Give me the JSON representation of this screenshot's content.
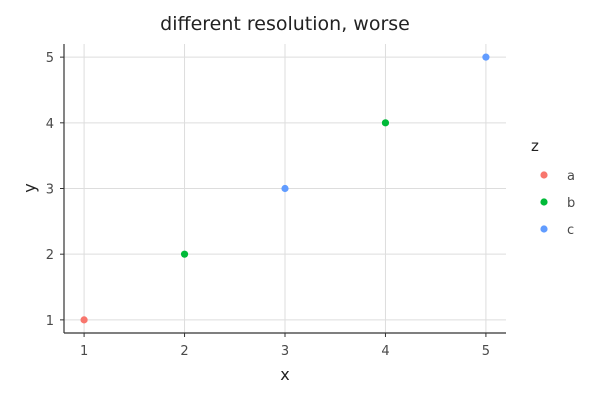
{
  "chart_data": {
    "type": "scatter",
    "title": "different resolution, worse",
    "xlabel": "x",
    "ylabel": "y",
    "xlim": [
      0.8,
      5.2
    ],
    "ylim": [
      0.8,
      5.2
    ],
    "xticks": [
      1,
      2,
      3,
      4,
      5
    ],
    "yticks": [
      1,
      2,
      3,
      4,
      5
    ],
    "grid": true,
    "legend": {
      "title": "z",
      "placement": "right",
      "entries": [
        {
          "name": "a",
          "color": "#F8766D"
        },
        {
          "name": "b",
          "color": "#00BA38"
        },
        {
          "name": "c",
          "color": "#619CFF"
        }
      ]
    },
    "points": [
      {
        "x": 1,
        "y": 1,
        "z": "a"
      },
      {
        "x": 2,
        "y": 2,
        "z": "b"
      },
      {
        "x": 3,
        "y": 3,
        "z": "c"
      },
      {
        "x": 4,
        "y": 4,
        "z": "b"
      },
      {
        "x": 5,
        "y": 5,
        "z": "c"
      }
    ]
  }
}
